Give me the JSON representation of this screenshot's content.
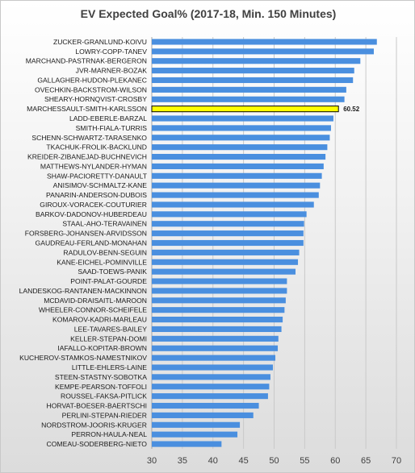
{
  "chart_data": {
    "type": "bar",
    "orientation": "horizontal",
    "title": "EV Expected Goal% (2017-18, Min. 150 Minutes)",
    "xlabel": "",
    "ylabel": "",
    "xlim": [
      30,
      70
    ],
    "xticks": [
      30,
      35,
      40,
      45,
      50,
      55,
      60,
      65,
      70
    ],
    "grid": "vertical",
    "legend": "none",
    "colors": {
      "bar": "#4a8fdf",
      "highlight": "#ffff00",
      "highlight_border": "#000000"
    },
    "highlight_index": 7,
    "highlight_label": "60.52",
    "categories": [
      "ZUCKER-GRANLUND-KOIVU",
      "LOWRY-COPP-TANEV",
      "MARCHAND-PASTRNAK-BERGERON",
      "JVR-MARNER-BOZAK",
      "GALLAGHER-HUDON-PLEKANEC",
      "OVECHKIN-BACKSTROM-WILSON",
      "SHEARY-HORNQVIST-CROSBY",
      "MARCHESSAULT-SMITH-KARLSSON",
      "LADD-EBERLE-BARZAL",
      "SMITH-FIALA-TURRIS",
      "SCHENN-SCHWARTZ-TARASENKO",
      "TKACHUK-FROLIK-BACKLUND",
      "KREIDER-ZIBANEJAD-BUCHNEVICH",
      "MATTHEWS-NYLANDER-HYMAN",
      "SHAW-PACIORETTY-DANAULT",
      "ANISIMOV-SCHMALTZ-KANE",
      "PANARIN-ANDERSON-DUBOIS",
      "GIROUX-VORACEK-COUTURIER",
      "BARKOV-DADONOV-HUBERDEAU",
      "STAAL-AHO-TERAVAINEN",
      "FORSBERG-JOHANSEN-ARVIDSSON",
      "GAUDREAU-FERLAND-MONAHAN",
      "RADULOV-BENN-SEGUIN",
      "KANE-EICHEL-POMINVILLE",
      "SAAD-TOEWS-PANIK",
      "POINT-PALAT-GOURDE",
      "LANDESKOG-RANTANEN-MACKINNON",
      "MCDAVID-DRAISAITL-MAROON",
      "WHEELER-CONNOR-SCHEIFELE",
      "KOMAROV-KADRI-MARLEAU",
      "LEE-TAVARES-BAILEY",
      "KELLER-STEPAN-DOMI",
      "IAFALLO-KOPITAR-BROWN",
      "KUCHEROV-STAMKOS-NAMESTNIKOV",
      "LITTLE-EHLERS-LAINE",
      "STEEN-STASTNY-SOBOTKA",
      "KEMPE-PEARSON-TOFFOLI",
      "ROUSSEL-FAKSA-PITLICK",
      "HORVAT-BOESER-BAERTSCHI",
      "PERLINI-STEPAN-RIEDER",
      "NORDSTROM-JOORIS-KRUGER",
      "PERRON-HAULA-NEAL",
      "COMEAU-SODERBERG-NIETO"
    ],
    "values": [
      66.8,
      66.3,
      64.1,
      63.1,
      62.9,
      61.8,
      61.5,
      60.52,
      59.7,
      59.3,
      59.1,
      58.7,
      58.4,
      58.1,
      57.8,
      57.5,
      57.3,
      56.5,
      55.3,
      54.9,
      54.8,
      54.8,
      54.1,
      53.9,
      53.5,
      52.1,
      52.1,
      51.9,
      51.7,
      51.4,
      51.2,
      50.7,
      50.6,
      50.2,
      49.8,
      49.4,
      49.2,
      49.0,
      47.5,
      46.6,
      44.4,
      44.0,
      41.4
    ]
  }
}
